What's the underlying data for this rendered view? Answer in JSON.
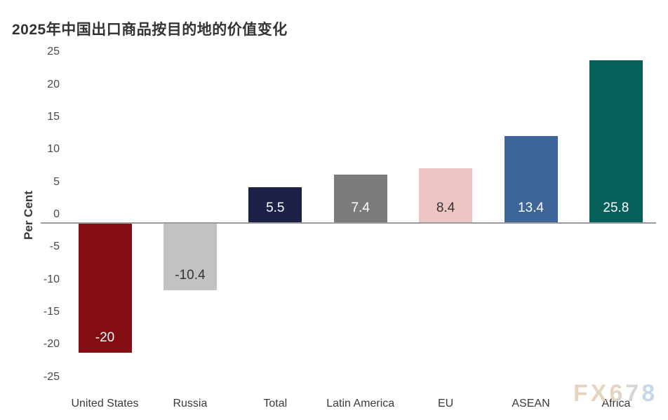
{
  "title": "2025年中国出口商品按目的地的价值变化",
  "watermark": "FX678",
  "chart_data": {
    "type": "bar",
    "title": "2025年中国出口商品按目的地的价值变化",
    "xlabel": "",
    "ylabel": "Per Cent",
    "ylim": [
      -25,
      25
    ],
    "yticks": [
      25,
      20,
      15,
      10,
      5,
      0,
      -5,
      -10,
      -15,
      -20,
      -25
    ],
    "grid": false,
    "legend": "none",
    "categories": [
      "United States",
      "Russia",
      "Total",
      "Latin America",
      "EU",
      "ASEAN",
      "Africa"
    ],
    "values": [
      -20,
      -10.4,
      5.5,
      7.4,
      8.4,
      13.4,
      25.8
    ],
    "bar_labels": [
      "-20",
      "-10.4",
      "5.5",
      "7.4",
      "8.4",
      "13.4",
      "25.8"
    ],
    "bar_colors": [
      "#830d10",
      "#c2c2c2",
      "#1b2147",
      "#7c7c7c",
      "#ecc5c2",
      "#3e6598",
      "#06605a"
    ],
    "bar_label_colors": [
      "#ffffff",
      "#333333",
      "#ffffff",
      "#ffffff",
      "#333333",
      "#ffffff",
      "#ffffff"
    ],
    "note": "Africa bar clipped at axis max 25"
  },
  "colors": {
    "axis_line": "#9b9b9b",
    "text": "#3a3a3a"
  }
}
